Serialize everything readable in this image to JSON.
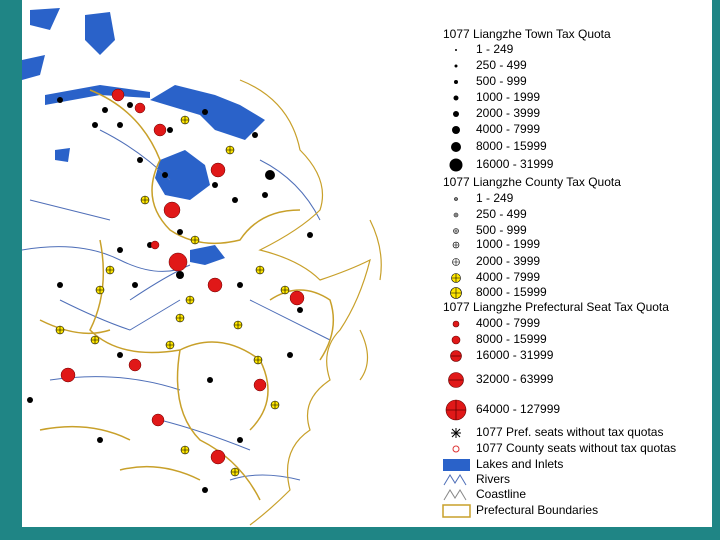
{
  "legend": {
    "sections": [
      {
        "title": "1077 Liangzhe Town Tax Quota",
        "items": [
          {
            "label": "1 - 249"
          },
          {
            "label": "250 - 499"
          },
          {
            "label": "500 - 999"
          },
          {
            "label": "1000 - 1999"
          },
          {
            "label": "2000 - 3999"
          },
          {
            "label": "4000 - 7999"
          },
          {
            "label": "8000 - 15999"
          },
          {
            "label": "16000 - 31999"
          }
        ]
      },
      {
        "title": "1077 Liangzhe County Tax Quota",
        "items": [
          {
            "label": "1 - 249"
          },
          {
            "label": "250 - 499"
          },
          {
            "label": "500 - 999"
          },
          {
            "label": "1000 - 1999"
          },
          {
            "label": "2000 - 3999"
          },
          {
            "label": "4000 - 7999"
          },
          {
            "label": "8000 - 15999"
          }
        ]
      },
      {
        "title": "1077 Liangzhe Prefectural Seat Tax Quota",
        "items": [
          {
            "label": "4000 - 7999"
          },
          {
            "label": "8000 - 15999"
          },
          {
            "label": "16000 - 31999"
          },
          {
            "label": "32000 - 63999"
          },
          {
            "label": "64000 - 127999"
          }
        ]
      }
    ],
    "other": [
      {
        "label": "1077 Pref. seats without tax quotas"
      },
      {
        "label": "1077 County seats without tax quotas"
      },
      {
        "label": "Lakes and Inlets"
      },
      {
        "label": "Rivers"
      },
      {
        "label": "Coastline"
      },
      {
        "label": "Prefectural Boundaries"
      }
    ]
  }
}
